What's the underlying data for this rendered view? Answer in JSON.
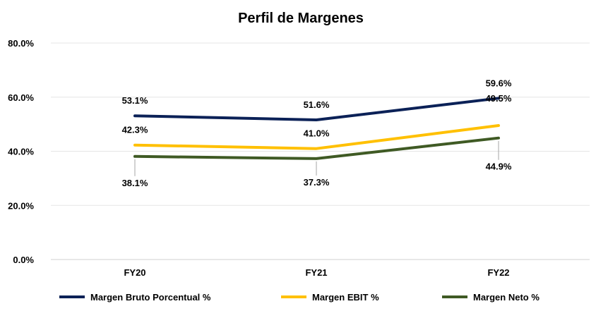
{
  "chart_data": {
    "type": "line",
    "title": "Perfil de Margenes",
    "categories": [
      "FY20",
      "FY21",
      "FY22"
    ],
    "ylim": [
      0,
      80
    ],
    "yticks": [
      0,
      20,
      40,
      60,
      80
    ],
    "ytick_labels": [
      "0.0%",
      "20.0%",
      "40.0%",
      "60.0%",
      "80.0%"
    ],
    "grid": true,
    "legend_position": "bottom",
    "series": [
      {
        "name": "Margen Bruto Porcentual %",
        "values": [
          53.1,
          51.6,
          59.6
        ],
        "labels": [
          "53.1%",
          "51.6%",
          "59.6%"
        ],
        "color": "#0b2157"
      },
      {
        "name": "Margen EBIT %",
        "values": [
          42.3,
          41.0,
          49.5
        ],
        "labels": [
          "42.3%",
          "41.0%",
          "49.5%"
        ],
        "color": "#ffc000"
      },
      {
        "name": "Margen Neto %",
        "values": [
          38.1,
          37.3,
          44.9
        ],
        "labels": [
          "38.1%",
          "37.3%",
          "44.9%"
        ],
        "color": "#3f5a24"
      }
    ]
  }
}
